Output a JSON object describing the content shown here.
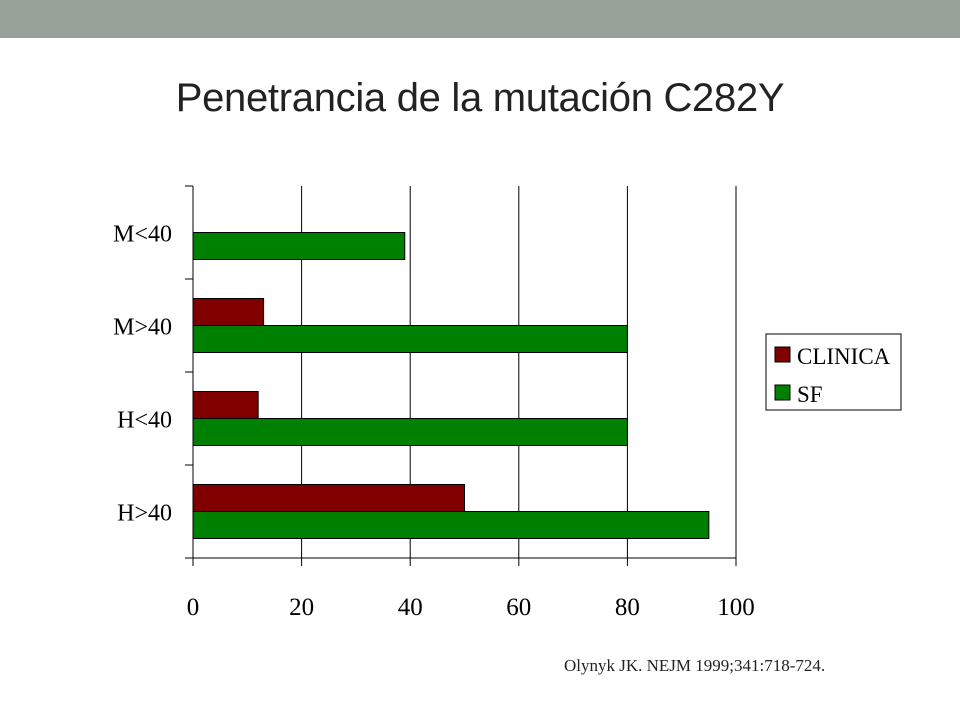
{
  "title": "Penetrancia de la mutación C282Y",
  "citation": "Olynyk JK. NEJM 1999;341:718-724.",
  "colors": {
    "top_bar": "#97a399",
    "clinica": "#800000",
    "sf": "#008000",
    "grid": "#000000"
  },
  "chart_data": {
    "type": "bar",
    "orientation": "horizontal",
    "categories": [
      "M<40",
      "M>40",
      "H<40",
      "H>40"
    ],
    "series": [
      {
        "name": "CLINICA",
        "color": "#800000",
        "values": [
          0,
          13,
          12,
          50
        ]
      },
      {
        "name": "SF",
        "color": "#008000",
        "values": [
          39,
          80,
          80,
          95
        ]
      }
    ],
    "xlim": [
      0,
      100
    ],
    "xticks": [
      "0",
      "20",
      "40",
      "60",
      "80",
      "100"
    ],
    "xlabel": "",
    "ylabel": "",
    "grid": "vertical",
    "legend": {
      "placement": "right",
      "entries": [
        "CLINICA",
        "SF"
      ]
    }
  }
}
